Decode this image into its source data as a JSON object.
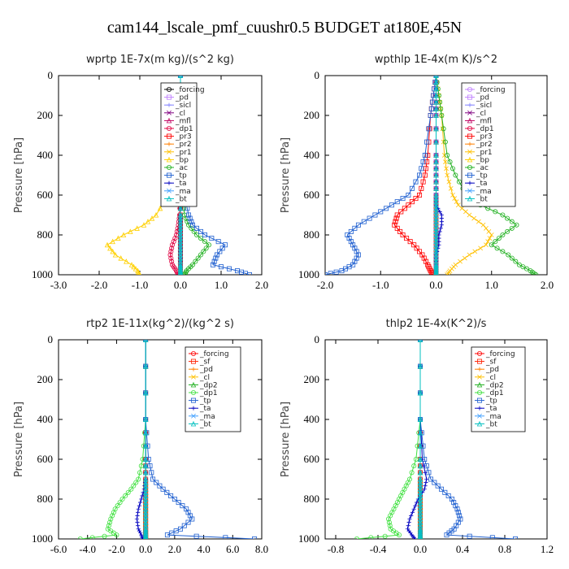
{
  "figure_title": "cam144_lscale_pmf_cuushr0.5  BUDGET at180E,45N",
  "chart_data": [
    {
      "type": "line",
      "title": "wprtp  1E-7x(m kg)/(s^2 kg)",
      "ylabel": "Pressure [hPa]",
      "xlim": [
        -3.0,
        2.0
      ],
      "xticks": [
        "-3.0",
        "-2.0",
        "-1.0",
        "0.0",
        "1.0",
        "2.0"
      ],
      "ylim": [
        1000,
        0
      ],
      "yticks": [
        "0",
        "200",
        "400",
        "600",
        "800",
        "1000"
      ],
      "legend_position": "top-center",
      "y": [
        0,
        200,
        400,
        500,
        600,
        700,
        750,
        800,
        850,
        900,
        950,
        980,
        1000
      ],
      "series": [
        {
          "name": "_forcing",
          "color": "#000000",
          "values": [
            0,
            0,
            0,
            0,
            0,
            0,
            0,
            0,
            0,
            0,
            0,
            0,
            0
          ]
        },
        {
          "name": "_pd",
          "color": "#c080ff",
          "values": [
            0,
            0,
            0,
            0,
            0,
            0,
            0,
            0,
            0,
            0,
            0,
            0,
            0
          ]
        },
        {
          "name": "_sicl",
          "color": "#8080ff",
          "values": [
            0,
            0,
            0,
            0,
            0,
            0,
            0,
            0,
            0,
            0,
            0,
            0,
            0
          ]
        },
        {
          "name": "_cl",
          "color": "#800080",
          "values": [
            0,
            0,
            0,
            0,
            0,
            0,
            0,
            0,
            0,
            0,
            0,
            0,
            0
          ]
        },
        {
          "name": "_mfl",
          "color": "#c00060",
          "values": [
            0,
            0,
            0,
            0,
            0,
            0,
            0,
            0,
            0,
            0,
            0,
            0,
            0
          ]
        },
        {
          "name": "_dp1",
          "color": "#e00040",
          "values": [
            0,
            0,
            0,
            0,
            0,
            -0.02,
            -0.05,
            -0.1,
            -0.2,
            -0.25,
            -0.2,
            -0.1,
            -0.05
          ]
        },
        {
          "name": "_pr3",
          "color": "#ff0000",
          "values": [
            0,
            0,
            0,
            0,
            0,
            0,
            0,
            0,
            0,
            0,
            0,
            0,
            0
          ]
        },
        {
          "name": "_pr2",
          "color": "#ff8000",
          "values": [
            0,
            0,
            0,
            0,
            0,
            0,
            0,
            0,
            0,
            0,
            0,
            0,
            0
          ]
        },
        {
          "name": "_pr1",
          "color": "#ffc000",
          "values": [
            0,
            0,
            0,
            0,
            0,
            0,
            0,
            0,
            0,
            0,
            0,
            0,
            0
          ]
        },
        {
          "name": "_bp",
          "color": "#ffd000",
          "values": [
            0,
            0,
            0,
            -0.1,
            -0.3,
            -0.6,
            -0.9,
            -1.4,
            -1.8,
            -1.6,
            -1.2,
            -1.05,
            -1.0
          ]
        },
        {
          "name": "_ac",
          "color": "#20b020",
          "values": [
            0,
            0,
            0,
            0.02,
            0.05,
            0.1,
            0.2,
            0.4,
            0.7,
            0.5,
            0.3,
            0.15,
            0.1
          ]
        },
        {
          "name": "_tp",
          "color": "#2060d0",
          "values": [
            0,
            0,
            0,
            0.05,
            0.1,
            0.2,
            0.3,
            0.6,
            1.1,
            0.9,
            0.8,
            1.4,
            1.7
          ]
        },
        {
          "name": "_ta",
          "color": "#0000c0",
          "values": [
            0,
            0,
            0,
            0,
            0,
            0,
            0,
            0,
            0,
            0,
            0,
            0,
            0
          ]
        },
        {
          "name": "_ma",
          "color": "#40a0ff",
          "values": [
            0,
            0,
            0,
            0,
            0,
            0,
            0,
            0,
            0,
            0,
            0,
            0,
            0
          ]
        },
        {
          "name": "_bt",
          "color": "#00c0c0",
          "values": [
            0,
            0,
            0,
            0,
            0,
            0,
            0,
            0,
            0,
            0,
            0,
            0,
            0
          ]
        }
      ]
    },
    {
      "type": "line",
      "title": "wpthlp  1E-4x(m K)/s^2",
      "ylabel": "Pressure [hPa]",
      "xlim": [
        -2.0,
        2.0
      ],
      "xticks": [
        "-2.0",
        "-1.0",
        "0.0",
        "1.0",
        "2.0"
      ],
      "ylim": [
        1000,
        0
      ],
      "yticks": [
        "0",
        "200",
        "400",
        "600",
        "800",
        "1000"
      ],
      "legend_position": "top-right",
      "y": [
        0,
        100,
        200,
        400,
        500,
        600,
        650,
        700,
        750,
        800,
        850,
        900,
        950,
        980,
        1000
      ],
      "series": [
        {
          "name": "_forcing",
          "color": "#c080ff",
          "values": [
            0,
            0,
            0,
            0,
            0,
            0,
            0,
            0,
            0,
            0,
            0,
            0,
            0,
            0,
            0
          ]
        },
        {
          "name": "_pd",
          "color": "#c080ff",
          "values": [
            0,
            0,
            0,
            0,
            0,
            0,
            0,
            0,
            0,
            0,
            0,
            0,
            0,
            0,
            0
          ]
        },
        {
          "name": "_sicl",
          "color": "#8080ff",
          "values": [
            0,
            0,
            0,
            0,
            0,
            0,
            0,
            0,
            0,
            0,
            0,
            0,
            0,
            0,
            0
          ]
        },
        {
          "name": "_cl",
          "color": "#800080",
          "values": [
            0,
            0,
            0,
            0,
            0,
            0,
            0,
            0,
            0,
            0,
            0,
            0,
            0,
            0,
            0
          ]
        },
        {
          "name": "_mfl",
          "color": "#c00060",
          "values": [
            0,
            0,
            0,
            0,
            0,
            0,
            0,
            0,
            0,
            0,
            0,
            0,
            0,
            0,
            0
          ]
        },
        {
          "name": "_dp1",
          "color": "#e00040",
          "values": [
            0,
            0,
            0,
            0,
            0,
            0,
            0,
            0,
            0,
            0,
            0,
            0,
            0,
            0,
            0
          ]
        },
        {
          "name": "_pr3",
          "color": "#ff0000",
          "values": [
            0,
            -0.05,
            -0.1,
            -0.15,
            -0.2,
            -0.3,
            -0.5,
            -0.7,
            -0.75,
            -0.6,
            -0.4,
            -0.25,
            -0.15,
            -0.1,
            -0.05
          ]
        },
        {
          "name": "_pr2",
          "color": "#ff8000",
          "values": [
            0,
            0,
            0,
            0,
            0,
            0,
            0,
            0,
            0,
            0,
            0,
            0,
            0,
            0,
            0
          ]
        },
        {
          "name": "_pr1",
          "color": "#ffc000",
          "values": [
            0,
            0.05,
            0.1,
            0.15,
            0.2,
            0.3,
            0.4,
            0.6,
            0.85,
            1.0,
            0.9,
            0.6,
            0.35,
            0.25,
            0.2
          ]
        },
        {
          "name": "_bp",
          "color": "#ffd000",
          "values": [
            0,
            0,
            0,
            0,
            0,
            0,
            0,
            0,
            0,
            0,
            0,
            0,
            0,
            0,
            0
          ]
        },
        {
          "name": "_ac",
          "color": "#20b020",
          "values": [
            0,
            0.05,
            0.1,
            0.2,
            0.35,
            0.55,
            0.8,
            1.2,
            1.45,
            1.2,
            1.0,
            1.3,
            1.5,
            1.7,
            1.8
          ]
        },
        {
          "name": "_tp",
          "color": "#2060d0",
          "values": [
            0,
            -0.05,
            -0.1,
            -0.2,
            -0.3,
            -0.5,
            -0.8,
            -1.1,
            -1.4,
            -1.6,
            -1.5,
            -1.4,
            -1.5,
            -1.7,
            -2.0
          ]
        },
        {
          "name": "_ta",
          "color": "#0000c0",
          "values": [
            0,
            0,
            0,
            0,
            0,
            0,
            0,
            0.1,
            0.1,
            0.05,
            0.05,
            0,
            0,
            0,
            0
          ]
        },
        {
          "name": "_ma",
          "color": "#40a0ff",
          "values": [
            0,
            0,
            0,
            0,
            0,
            0,
            0,
            0,
            0,
            0,
            0,
            0,
            0,
            0,
            0
          ]
        },
        {
          "name": "_bt",
          "color": "#00c0c0",
          "values": [
            0,
            0,
            0,
            0,
            0,
            0,
            0,
            0,
            0,
            0,
            0,
            0,
            0,
            0,
            0
          ]
        }
      ]
    },
    {
      "type": "line",
      "title": "rtp2  1E-11x(kg^2)/(kg^2 s)",
      "ylabel": "Pressure [hPa]",
      "xlim": [
        -6.0,
        8.0
      ],
      "xticks": [
        "-6.0",
        "-4.0",
        "-2.0",
        "0.0",
        "2.0",
        "4.0",
        "6.0",
        "8.0"
      ],
      "ylim": [
        1000,
        0
      ],
      "yticks": [
        "0",
        "200",
        "400",
        "600",
        "800",
        "1000"
      ],
      "legend_position": "top-right",
      "y": [
        0,
        400,
        600,
        700,
        750,
        800,
        850,
        900,
        950,
        980,
        1000
      ],
      "series": [
        {
          "name": "_forcing",
          "color": "#ff0000",
          "values": [
            0,
            0,
            0,
            0,
            0,
            0,
            0,
            0,
            0,
            0,
            0
          ]
        },
        {
          "name": "_sf",
          "color": "#ff2000",
          "values": [
            0,
            0,
            0,
            0,
            0,
            0,
            0,
            0,
            0,
            0,
            0
          ]
        },
        {
          "name": "_pd",
          "color": "#ff8000",
          "values": [
            0,
            0,
            0,
            0,
            0,
            0,
            0,
            0,
            0,
            0,
            0
          ]
        },
        {
          "name": "_cl",
          "color": "#ffc000",
          "values": [
            0,
            0,
            0,
            0,
            0,
            0,
            0,
            0,
            0,
            0,
            0
          ]
        },
        {
          "name": "_dp2",
          "color": "#20b020",
          "values": [
            0,
            0,
            0,
            0,
            0,
            0,
            0,
            0,
            0,
            0,
            0
          ]
        },
        {
          "name": "_dp1",
          "color": "#40e040",
          "values": [
            0,
            0,
            -0.2,
            -0.5,
            -1.0,
            -1.6,
            -2.1,
            -2.4,
            -2.6,
            -2.0,
            -4.5
          ]
        },
        {
          "name": "_tp",
          "color": "#2060d0",
          "values": [
            0,
            0,
            0.2,
            0.5,
            1.2,
            2.0,
            2.8,
            3.2,
            2.4,
            1.5,
            7.5
          ]
        },
        {
          "name": "_ta",
          "color": "#0000c0",
          "values": [
            0,
            0,
            0,
            0,
            -0.1,
            -0.3,
            -0.5,
            -0.6,
            -0.5,
            -0.3,
            -0.2
          ]
        },
        {
          "name": "_ma",
          "color": "#40a0ff",
          "values": [
            0,
            0,
            0,
            0,
            0,
            0,
            0,
            0,
            0,
            0,
            0
          ]
        },
        {
          "name": "_bt",
          "color": "#00c0c0",
          "values": [
            0,
            0,
            0,
            0,
            0,
            0,
            0,
            0,
            0,
            0,
            0
          ]
        }
      ]
    },
    {
      "type": "line",
      "title": "thlp2  1E-4x(K^2)/s",
      "ylabel": "Pressure [hPa]",
      "xlim": [
        -0.9,
        1.2
      ],
      "xticks": [
        "-0.8",
        "-0.4",
        "0.0",
        "0.4",
        "0.8",
        "1.2"
      ],
      "ylim": [
        1000,
        0
      ],
      "yticks": [
        "0",
        "200",
        "400",
        "600",
        "800",
        "1000"
      ],
      "legend_position": "top-right",
      "y": [
        0,
        400,
        600,
        700,
        750,
        800,
        850,
        900,
        950,
        980,
        1000
      ],
      "series": [
        {
          "name": "_forcing",
          "color": "#ff0000",
          "values": [
            0,
            0,
            0,
            0,
            0,
            0,
            0,
            0,
            0,
            0,
            0
          ]
        },
        {
          "name": "_sf",
          "color": "#ff2000",
          "values": [
            0,
            0,
            0,
            0,
            0,
            0,
            0,
            0,
            0,
            0,
            0
          ]
        },
        {
          "name": "_pd",
          "color": "#ff8000",
          "values": [
            0,
            0,
            0,
            0,
            0,
            0,
            0,
            0,
            0,
            0,
            0
          ]
        },
        {
          "name": "_cl",
          "color": "#ffc000",
          "values": [
            0,
            0,
            0,
            0,
            0,
            0,
            0,
            0,
            0,
            0,
            0
          ]
        },
        {
          "name": "_dp2",
          "color": "#20b020",
          "values": [
            0,
            0,
            0,
            0,
            0,
            0,
            0,
            0,
            0,
            0,
            0
          ]
        },
        {
          "name": "_dp1",
          "color": "#40e040",
          "values": [
            0,
            0,
            -0.04,
            -0.1,
            -0.15,
            -0.2,
            -0.25,
            -0.3,
            -0.28,
            -0.2,
            -0.6
          ]
        },
        {
          "name": "_tp",
          "color": "#2060d0",
          "values": [
            0,
            0,
            0.04,
            0.1,
            0.2,
            0.3,
            0.35,
            0.38,
            0.32,
            0.25,
            0.9
          ]
        },
        {
          "name": "_ta",
          "color": "#0000c0",
          "values": [
            0,
            0,
            0.02,
            0.06,
            0.04,
            -0.02,
            -0.06,
            -0.1,
            -0.12,
            -0.08,
            -0.05
          ]
        },
        {
          "name": "_ma",
          "color": "#40a0ff",
          "values": [
            0,
            0,
            0,
            0,
            0,
            0,
            0,
            0,
            0,
            0,
            0
          ]
        },
        {
          "name": "_bt",
          "color": "#00c0c0",
          "values": [
            0,
            0,
            0,
            0,
            0,
            0,
            0,
            0,
            0,
            0,
            0
          ]
        }
      ]
    }
  ]
}
